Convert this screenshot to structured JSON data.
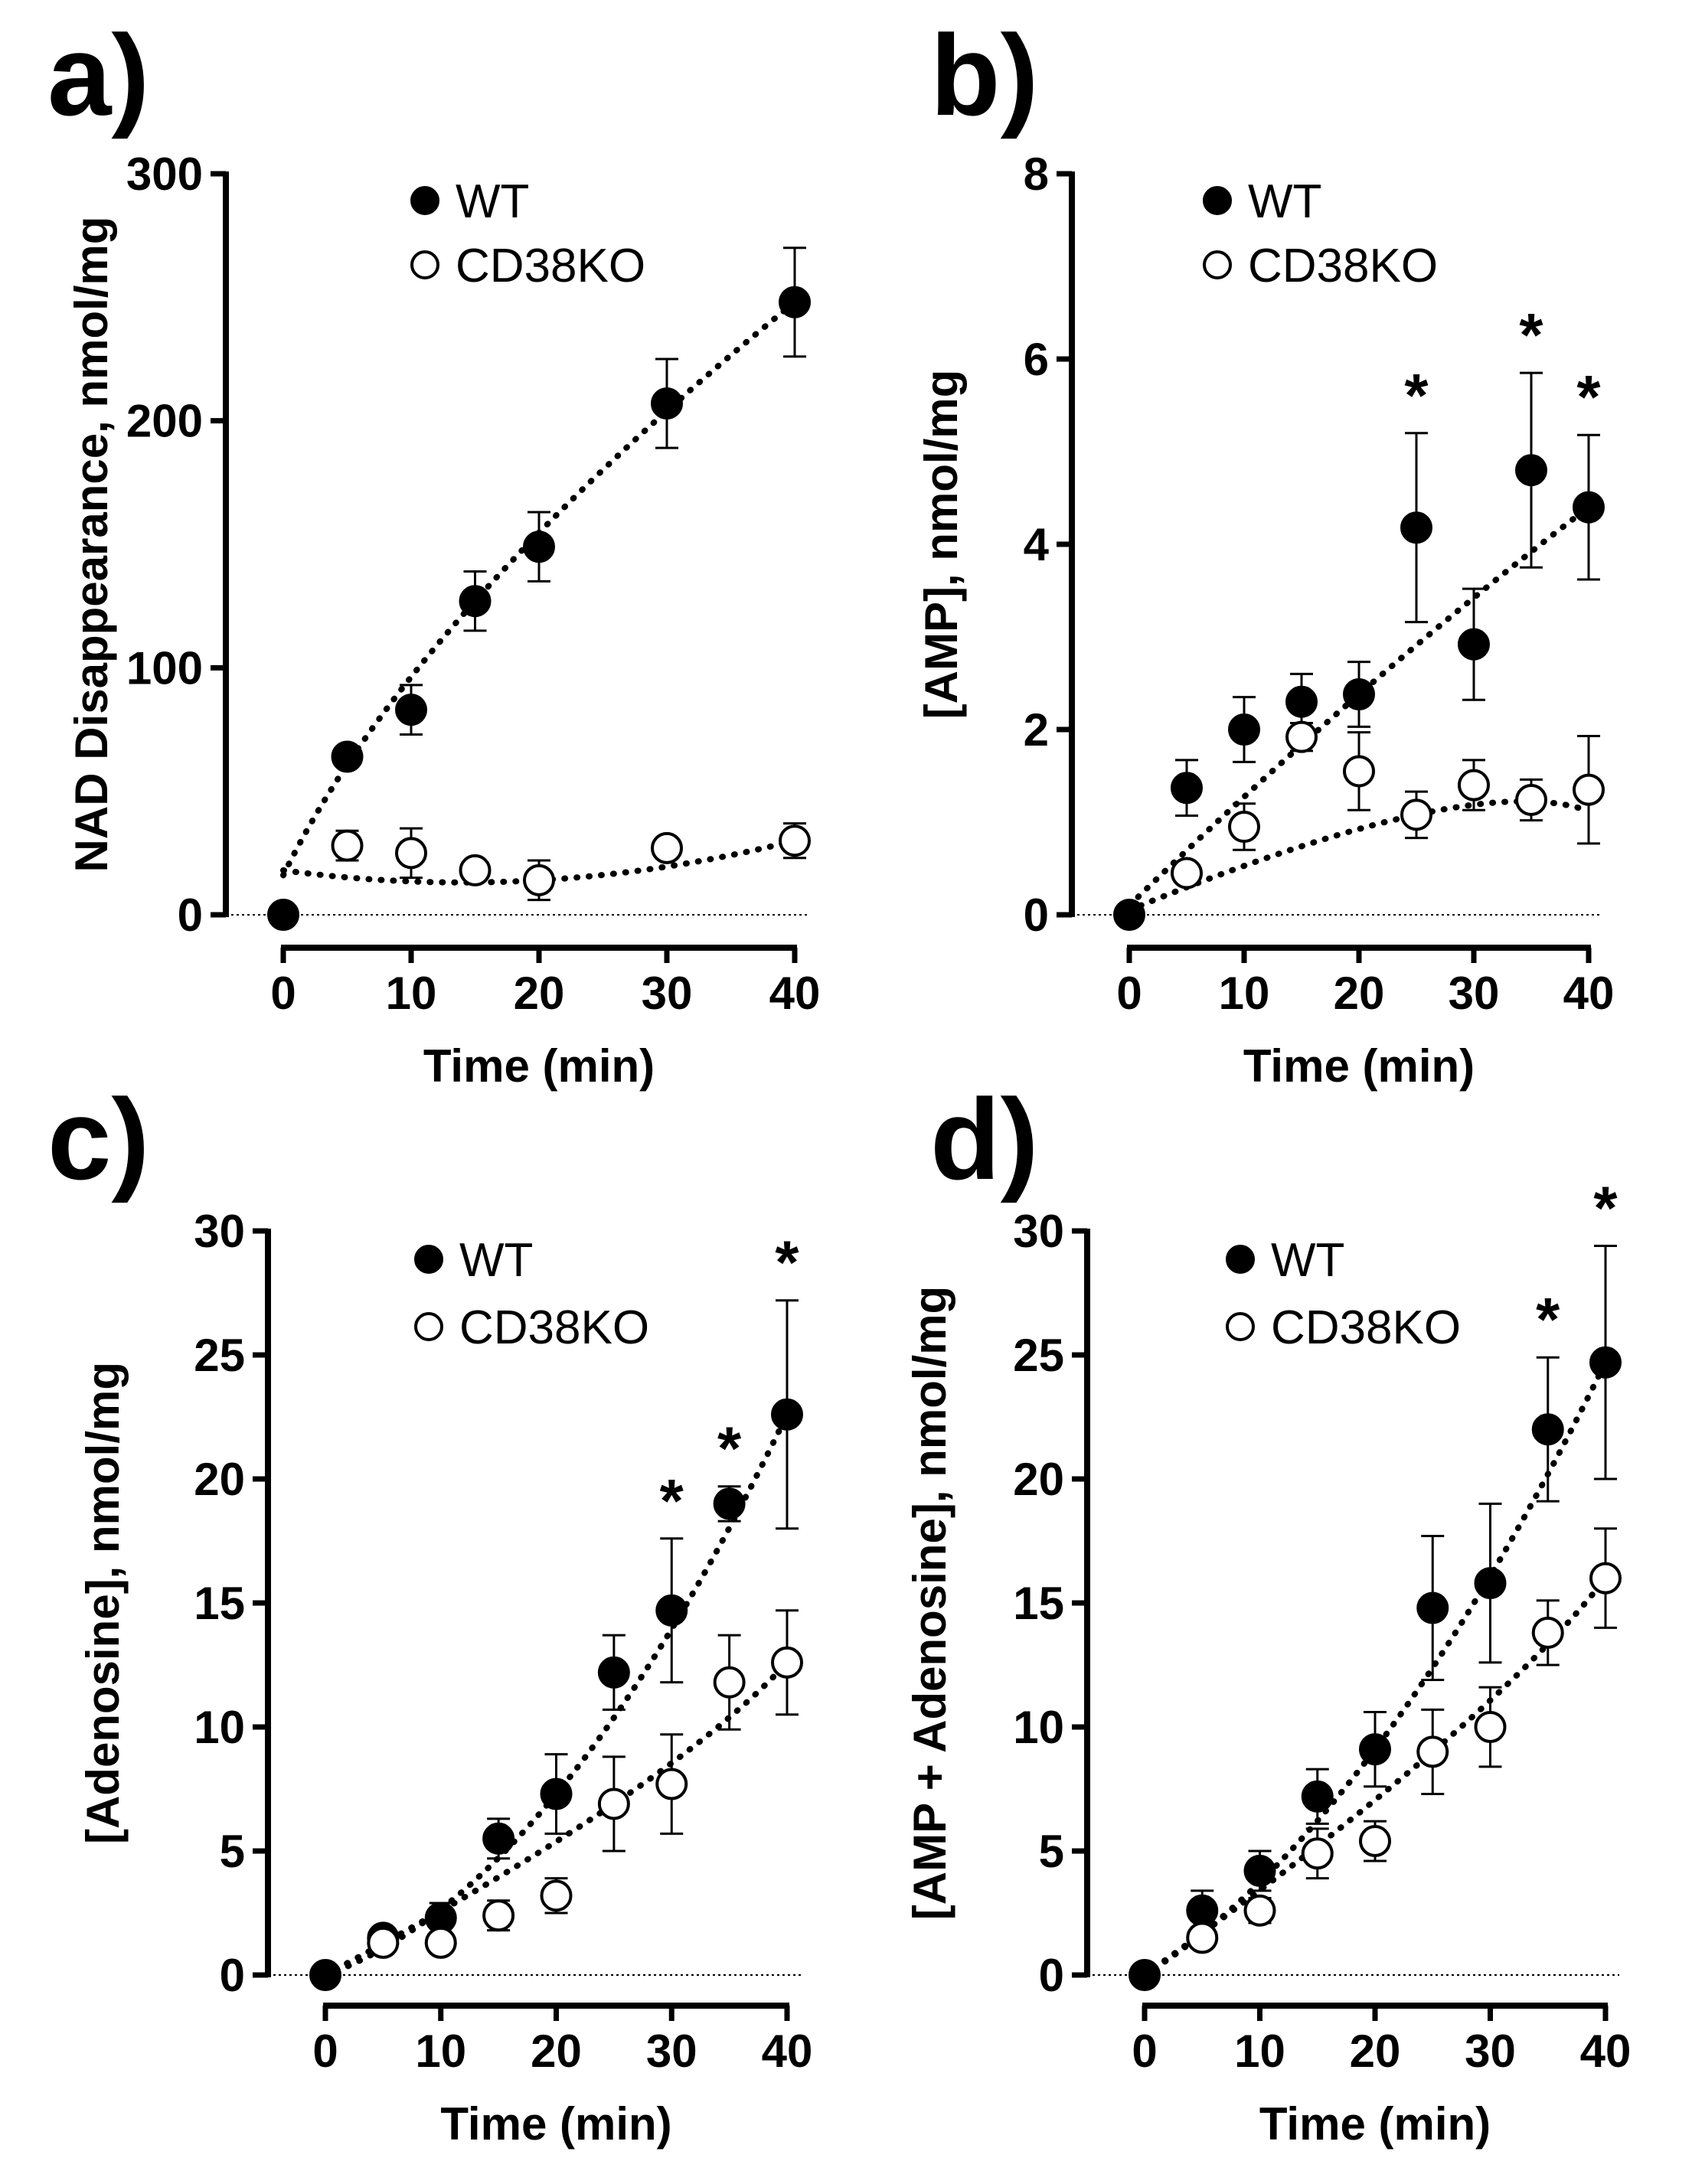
{
  "chart_data": [
    {
      "panel": "a)",
      "type": "scatter",
      "xlabel": "Time (min)",
      "ylabel": "NAD Disappearance, nmol/mg",
      "xlim": [
        0,
        40
      ],
      "ylim": [
        0,
        300
      ],
      "xticks": [
        0,
        10,
        20,
        30,
        40
      ],
      "yticks": [
        0,
        100,
        200,
        300
      ],
      "legend": {
        "position": "top-left",
        "entries": [
          "WT",
          "CD38KO"
        ]
      },
      "series": [
        {
          "name": "WT",
          "marker": "filled-circle",
          "x": [
            0,
            5,
            10,
            15,
            20,
            30,
            40
          ],
          "y": [
            0,
            64,
            83,
            127,
            149,
            207,
            248
          ],
          "err": [
            0,
            3,
            10,
            12,
            14,
            18,
            22
          ],
          "fit": [
            [
              0,
              16
            ],
            [
              40,
              248
            ]
          ]
        },
        {
          "name": "CD38KO",
          "marker": "open-circle",
          "x": [
            5,
            10,
            15,
            20,
            30,
            40
          ],
          "y": [
            28,
            25,
            18,
            14,
            27,
            30
          ],
          "err": [
            6,
            10,
            4,
            8,
            4,
            7
          ],
          "fit": [
            [
              0,
              18
            ],
            [
              40,
              30
            ]
          ]
        }
      ],
      "annotations": []
    },
    {
      "panel": "b)",
      "type": "scatter",
      "xlabel": "Time (min)",
      "ylabel": "[AMP], nmol/mg",
      "xlim": [
        0,
        40
      ],
      "ylim": [
        0,
        8
      ],
      "xticks": [
        0,
        10,
        20,
        30,
        40
      ],
      "yticks": [
        0,
        2,
        4,
        6,
        8
      ],
      "legend": {
        "position": "top-left",
        "entries": [
          "WT",
          "CD38KO"
        ]
      },
      "series": [
        {
          "name": "WT",
          "marker": "filled-circle",
          "x": [
            0,
            5,
            10,
            15,
            20,
            25,
            30,
            35,
            40
          ],
          "y": [
            0,
            1.37,
            2.0,
            2.3,
            2.38,
            4.18,
            2.92,
            4.8,
            4.4
          ],
          "err": [
            0,
            0.3,
            0.35,
            0.3,
            0.35,
            1.02,
            0.6,
            1.05,
            0.78
          ],
          "fit": [
            [
              0,
              0.1
            ],
            [
              40,
              4.4
            ]
          ]
        },
        {
          "name": "CD38KO",
          "marker": "open-circle",
          "x": [
            5,
            10,
            15,
            20,
            25,
            30,
            35,
            40
          ],
          "y": [
            0.45,
            0.95,
            1.92,
            1.55,
            1.08,
            1.4,
            1.24,
            1.35
          ],
          "err": [
            0.1,
            0.25,
            0.15,
            0.42,
            0.25,
            0.27,
            0.22,
            0.58
          ],
          "fit": [
            [
              0,
              0.05
            ],
            [
              40,
              1.12
            ]
          ]
        }
      ],
      "annotations": [
        {
          "text": "*",
          "x": 25
        },
        {
          "text": "*",
          "x": 35
        },
        {
          "text": "*",
          "x": 40
        }
      ]
    },
    {
      "panel": "c)",
      "type": "scatter",
      "xlabel": "Time (min)",
      "ylabel": "[Adenosine], nmol/mg",
      "xlim": [
        0,
        40
      ],
      "ylim": [
        0,
        30
      ],
      "xticks": [
        0,
        10,
        20,
        30,
        40
      ],
      "yticks": [
        0,
        5,
        10,
        15,
        20,
        25,
        30
      ],
      "legend": {
        "position": "top-left",
        "entries": [
          "WT",
          "CD38KO"
        ]
      },
      "series": [
        {
          "name": "WT",
          "marker": "filled-circle",
          "x": [
            0,
            5,
            10,
            15,
            20,
            25,
            30,
            35,
            40
          ],
          "y": [
            0,
            1.5,
            2.3,
            5.5,
            7.3,
            12.2,
            14.7,
            19.0,
            22.6
          ],
          "err": [
            0,
            0.3,
            0.6,
            0.8,
            1.6,
            1.5,
            2.9,
            0.7,
            4.6
          ],
          "fit": [
            [
              0,
              0
            ],
            [
              40,
              22.6
            ]
          ]
        },
        {
          "name": "CD38KO",
          "marker": "open-circle",
          "x": [
            5,
            10,
            15,
            20,
            25,
            30,
            35,
            40
          ],
          "y": [
            1.3,
            1.3,
            2.4,
            3.2,
            6.9,
            7.7,
            11.8,
            12.6
          ],
          "err": [
            0.3,
            0.4,
            0.6,
            0.7,
            1.9,
            2.0,
            1.9,
            2.1
          ],
          "fit": [
            [
              0,
              0
            ],
            [
              40,
              12.6
            ]
          ]
        }
      ],
      "annotations": [
        {
          "text": "*",
          "x": 30
        },
        {
          "text": "*",
          "x": 35
        },
        {
          "text": "*",
          "x": 40
        }
      ]
    },
    {
      "panel": "d)",
      "type": "scatter",
      "xlabel": "Time (min)",
      "ylabel": "[AMP + Adenosine], nmol/mg",
      "xlim": [
        0,
        40
      ],
      "ylim": [
        0,
        30
      ],
      "xticks": [
        0,
        10,
        20,
        30,
        40
      ],
      "yticks": [
        0,
        5,
        10,
        15,
        20,
        25,
        30
      ],
      "legend": {
        "position": "top-left",
        "entries": [
          "WT",
          "CD38KO"
        ]
      },
      "series": [
        {
          "name": "WT",
          "marker": "filled-circle",
          "x": [
            0,
            5,
            10,
            15,
            20,
            25,
            30,
            35,
            40
          ],
          "y": [
            0,
            2.6,
            4.2,
            7.2,
            9.1,
            14.8,
            15.8,
            22.0,
            24.7
          ],
          "err": [
            0,
            0.8,
            0.8,
            1.1,
            1.5,
            2.9,
            3.2,
            2.9,
            4.7
          ],
          "fit": [
            [
              0,
              0
            ],
            [
              40,
              24.7
            ]
          ]
        },
        {
          "name": "CD38KO",
          "marker": "open-circle",
          "x": [
            5,
            10,
            15,
            20,
            25,
            30,
            35,
            40
          ],
          "y": [
            1.5,
            2.6,
            4.9,
            5.4,
            9.0,
            10.0,
            13.8,
            16.0
          ],
          "err": [
            0.3,
            0.5,
            1.0,
            0.8,
            1.7,
            1.6,
            1.3,
            2.0
          ],
          "fit": [
            [
              0,
              0
            ],
            [
              40,
              16.0
            ]
          ]
        }
      ],
      "annotations": [
        {
          "text": "*",
          "x": 35
        },
        {
          "text": "*",
          "x": 40
        }
      ]
    }
  ]
}
